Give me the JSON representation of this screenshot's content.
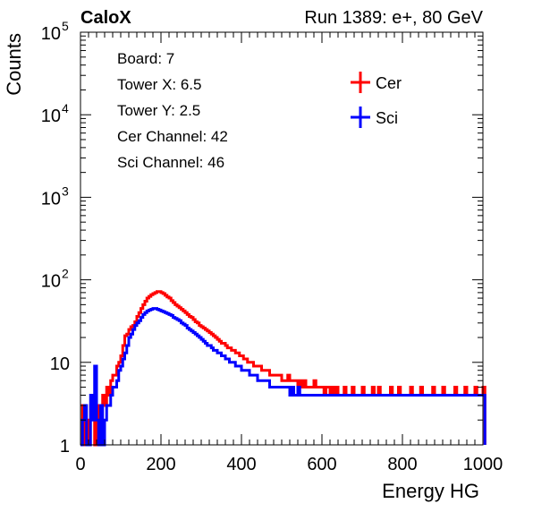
{
  "header": {
    "brand": "CaloX",
    "run_info": "Run 1389: e+, 80 GeV"
  },
  "info_box": {
    "lines": [
      "Board: 7",
      "Tower X: 6.5",
      "Tower Y: 2.5",
      "Cer Channel: 42",
      "Sci Channel: 46"
    ]
  },
  "chart_data": {
    "type": "line",
    "style": "step-histogram",
    "xlabel": "Energy HG",
    "ylabel": "Counts",
    "xlim": [
      0,
      1000
    ],
    "ylim": [
      1,
      100000
    ],
    "yscale": "log",
    "xticks": [
      0,
      200,
      400,
      600,
      800,
      1000
    ],
    "xtick_labels": [
      "0",
      "200",
      "400",
      "600",
      "800",
      "1000"
    ],
    "ytick_labels": [
      {
        "value": 1,
        "base": "1",
        "exp": ""
      },
      {
        "value": 10,
        "base": "10",
        "exp": ""
      },
      {
        "value": 100,
        "base": "10",
        "exp": "2"
      },
      {
        "value": 1000,
        "base": "10",
        "exp": "3"
      },
      {
        "value": 10000,
        "base": "10",
        "exp": "4"
      },
      {
        "value": 100000,
        "base": "10",
        "exp": "5"
      }
    ],
    "grid": false,
    "legend_position": "top-right",
    "bin_width": 5,
    "series": [
      {
        "name": "Cer",
        "color": "#ff0000",
        "values": [
          1,
          3,
          0,
          1,
          2,
          3,
          3,
          1,
          2,
          3,
          3,
          4,
          3,
          5,
          4,
          6,
          7,
          7,
          9,
          10,
          12,
          16,
          21,
          22,
          25,
          27,
          28,
          31,
          36,
          40,
          45,
          50,
          55,
          60,
          63,
          66,
          68,
          70,
          72,
          72,
          70,
          68,
          65,
          62,
          60,
          56,
          53,
          50,
          48,
          46,
          44,
          42,
          40,
          38,
          36,
          35,
          33,
          31,
          30,
          28,
          27,
          26,
          25,
          24,
          23,
          22,
          21,
          20,
          19,
          18,
          17,
          17,
          16,
          15,
          15,
          14,
          14,
          13,
          13,
          12,
          12,
          11,
          11,
          10,
          10,
          10,
          9,
          9,
          9,
          9,
          8,
          8,
          8,
          8,
          7,
          7,
          7,
          7,
          7,
          7,
          6,
          6,
          6,
          7,
          6,
          6,
          6,
          6,
          5,
          6,
          5,
          6,
          5,
          5,
          5,
          5,
          6,
          5,
          5,
          5,
          5,
          4,
          5,
          5,
          4,
          5,
          4,
          5,
          4,
          4,
          4,
          5,
          4,
          4,
          4,
          5,
          4,
          4,
          4,
          4,
          5,
          4,
          4,
          4,
          4,
          5,
          4,
          4,
          5,
          4,
          4,
          4,
          4,
          4,
          5,
          4,
          4,
          4,
          5,
          4,
          4,
          4,
          4,
          4,
          5,
          4,
          4,
          4,
          4,
          5,
          4,
          4,
          4,
          4,
          4,
          5,
          4,
          4,
          4,
          4,
          5,
          4,
          4,
          4,
          4,
          4,
          5,
          4,
          4,
          4,
          4,
          5,
          4,
          4,
          4,
          4,
          5,
          4,
          4,
          4,
          5
        ]
      },
      {
        "name": "Sci",
        "color": "#0000ff",
        "values": [
          1,
          2,
          3,
          1,
          0,
          4,
          2,
          9,
          2,
          0,
          3,
          1,
          2,
          3,
          3,
          4,
          5,
          5,
          6,
          8,
          9,
          11,
          13,
          16,
          20,
          22,
          25,
          28,
          30,
          32,
          35,
          38,
          40,
          42,
          43,
          44,
          45,
          45,
          44,
          43,
          42,
          41,
          40,
          39,
          38,
          37,
          35,
          34,
          33,
          32,
          30,
          29,
          28,
          26,
          25,
          24,
          23,
          22,
          21,
          20,
          19,
          18,
          17,
          16,
          16,
          15,
          14,
          14,
          13,
          13,
          12,
          12,
          11,
          11,
          10,
          10,
          10,
          9,
          9,
          9,
          8,
          8,
          8,
          8,
          7,
          7,
          7,
          7,
          6,
          6,
          6,
          6,
          6,
          6,
          5,
          5,
          5,
          5,
          5,
          5,
          5,
          5,
          5,
          5,
          4,
          5,
          4,
          4,
          5,
          4,
          4,
          4,
          4,
          4,
          4,
          4,
          4,
          4,
          4,
          4,
          4,
          4,
          4,
          4,
          4,
          4,
          4,
          4,
          4,
          4,
          4,
          4,
          4,
          4,
          4,
          4,
          4,
          4,
          4,
          4,
          4,
          4,
          4,
          4,
          4,
          4,
          4,
          4,
          4,
          4,
          4,
          4,
          4,
          4,
          4,
          4,
          4,
          4,
          4,
          4,
          4,
          4,
          4,
          4,
          4,
          4,
          4,
          4,
          4,
          4,
          4,
          4,
          4,
          4,
          4,
          4,
          4,
          4,
          4,
          4,
          4,
          4,
          4,
          4,
          4,
          4,
          4,
          4,
          4,
          4,
          4,
          4,
          4,
          4,
          4,
          4,
          4,
          4,
          4,
          4,
          4
        ]
      }
    ]
  }
}
